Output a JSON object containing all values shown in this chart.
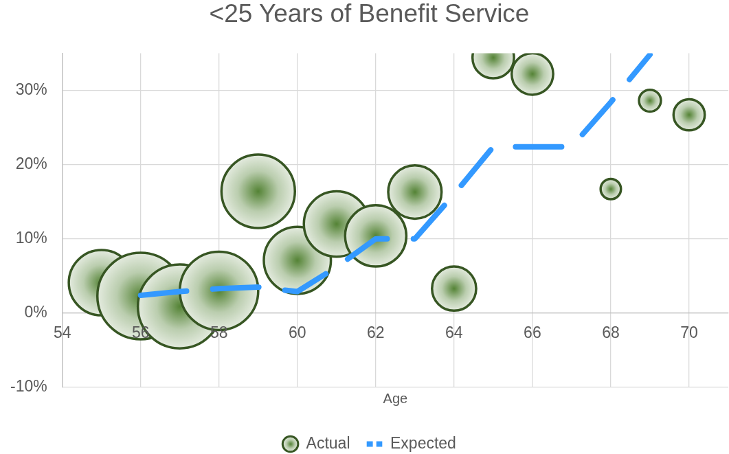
{
  "chart_data": {
    "type": "bubble",
    "title": "<25 Years of Benefit Service",
    "xlabel": "Age",
    "xlim": [
      54,
      71
    ],
    "xticks": [
      54,
      56,
      58,
      60,
      62,
      64,
      66,
      68,
      70
    ],
    "ylim": [
      -10,
      35
    ],
    "yticks": [
      {
        "value": -10,
        "label": "-10%"
      },
      {
        "value": 0,
        "label": "0%"
      },
      {
        "value": 10,
        "label": "10%"
      },
      {
        "value": 20,
        "label": "20%"
      },
      {
        "value": 30,
        "label": "30%"
      }
    ],
    "grid": true,
    "legend": "bottom",
    "series": [
      {
        "name": "Actual",
        "color": "#375623",
        "x": [
          55,
          56,
          57,
          58,
          59,
          60,
          61,
          62,
          63,
          64,
          65,
          66,
          68,
          69,
          70
        ],
        "values": [
          4.1,
          2.3,
          0.9,
          3.0,
          16.4,
          7.1,
          12.0,
          10.4,
          16.3,
          3.3,
          34.4,
          32.2,
          16.7,
          28.6,
          26.7
        ],
        "sizes": [
          0.57,
          1,
          0.94,
          0.82,
          0.72,
          0.6,
          0.57,
          0.5,
          0.38,
          0.26,
          0.23,
          0.23,
          0.055,
          0.064,
          0.13
        ]
      },
      {
        "name": "Expected",
        "type": "line",
        "color": "#3399ff",
        "line_style": "dashed",
        "marker": "none",
        "x": [
          56,
          57,
          58,
          59,
          60,
          61,
          62,
          63,
          64,
          65,
          66,
          67,
          68,
          69
        ],
        "values": [
          2.4,
          2.9,
          3.3,
          3.5,
          2.9,
          6.2,
          10.0,
          10.0,
          16.0,
          22.4,
          22.4,
          22.4,
          28.4,
          34.8
        ]
      }
    ]
  }
}
